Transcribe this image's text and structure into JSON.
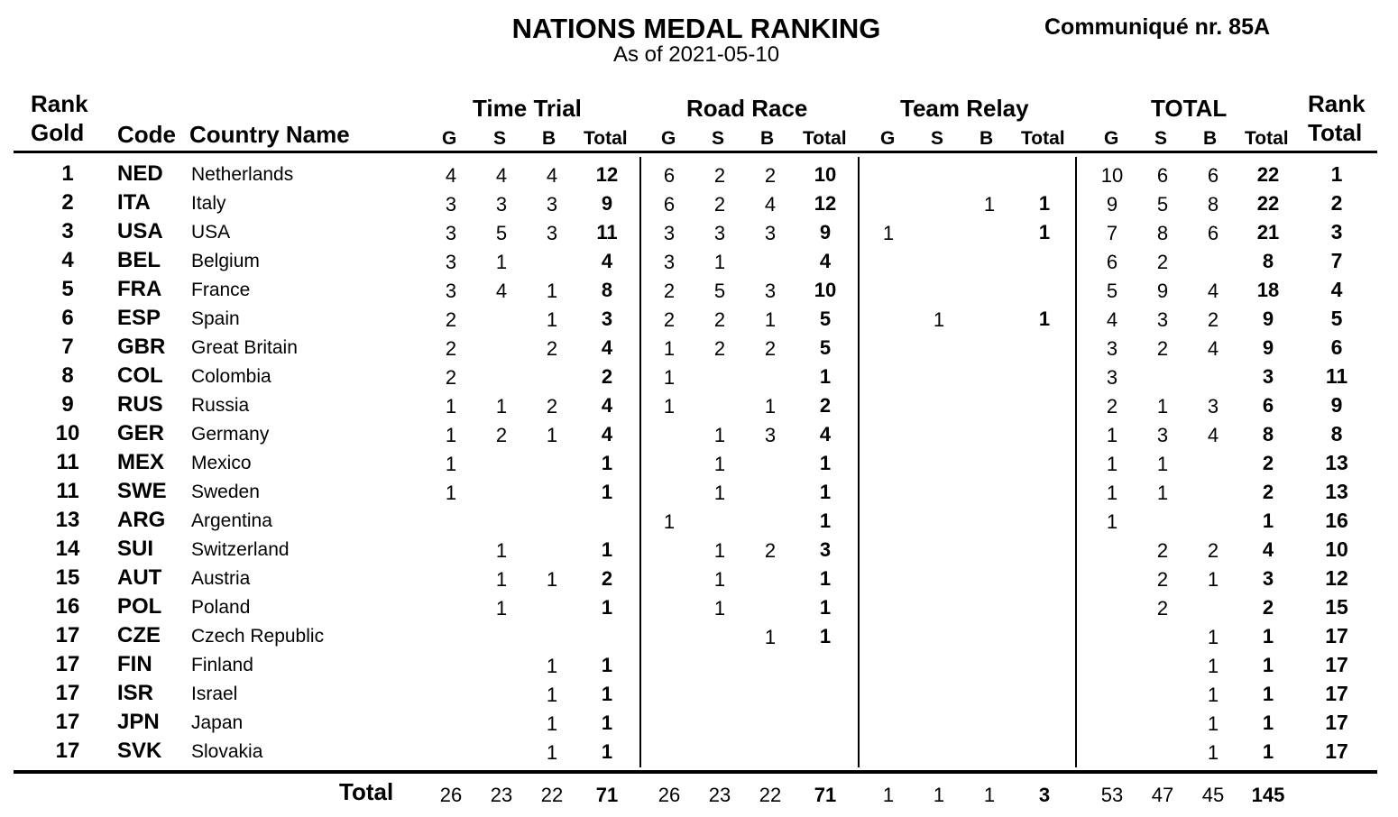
{
  "header": {
    "title": "NATIONS MEDAL RANKING",
    "subtitle": "As of 2021-05-10",
    "communique": "Communiqué nr.  85A"
  },
  "columns": {
    "rank_gold_top": "Rank",
    "rank_gold_bottom": "Gold",
    "code": "Code",
    "country": "Country Name",
    "rank_total_top": "Rank",
    "rank_total_bottom": "Total",
    "groups": [
      "Time Trial",
      "Road Race",
      "Team Relay",
      "TOTAL"
    ],
    "g": "G",
    "s": "S",
    "b": "B",
    "total": "Total"
  },
  "rows": [
    {
      "rank": "1",
      "code": "NED",
      "name": "Netherlands",
      "tt": [
        "4",
        "4",
        "4",
        "12"
      ],
      "rr": [
        "6",
        "2",
        "2",
        "10"
      ],
      "rl": [
        "",
        "",
        "",
        ""
      ],
      "t": [
        "10",
        "6",
        "6",
        "22"
      ],
      "rank_total": "1"
    },
    {
      "rank": "2",
      "code": "ITA",
      "name": "Italy",
      "tt": [
        "3",
        "3",
        "3",
        "9"
      ],
      "rr": [
        "6",
        "2",
        "4",
        "12"
      ],
      "rl": [
        "",
        "",
        "1",
        "1"
      ],
      "t": [
        "9",
        "5",
        "8",
        "22"
      ],
      "rank_total": "2"
    },
    {
      "rank": "3",
      "code": "USA",
      "name": "USA",
      "tt": [
        "3",
        "5",
        "3",
        "11"
      ],
      "rr": [
        "3",
        "3",
        "3",
        "9"
      ],
      "rl": [
        "1",
        "",
        "",
        "1"
      ],
      "t": [
        "7",
        "8",
        "6",
        "21"
      ],
      "rank_total": "3"
    },
    {
      "rank": "4",
      "code": "BEL",
      "name": "Belgium",
      "tt": [
        "3",
        "1",
        "",
        "4"
      ],
      "rr": [
        "3",
        "1",
        "",
        "4"
      ],
      "rl": [
        "",
        "",
        "",
        ""
      ],
      "t": [
        "6",
        "2",
        "",
        "8"
      ],
      "rank_total": "7"
    },
    {
      "rank": "5",
      "code": "FRA",
      "name": "France",
      "tt": [
        "3",
        "4",
        "1",
        "8"
      ],
      "rr": [
        "2",
        "5",
        "3",
        "10"
      ],
      "rl": [
        "",
        "",
        "",
        ""
      ],
      "t": [
        "5",
        "9",
        "4",
        "18"
      ],
      "rank_total": "4"
    },
    {
      "rank": "6",
      "code": "ESP",
      "name": "Spain",
      "tt": [
        "2",
        "",
        "1",
        "3"
      ],
      "rr": [
        "2",
        "2",
        "1",
        "5"
      ],
      "rl": [
        "",
        "1",
        "",
        "1"
      ],
      "t": [
        "4",
        "3",
        "2",
        "9"
      ],
      "rank_total": "5"
    },
    {
      "rank": "7",
      "code": "GBR",
      "name": "Great Britain",
      "tt": [
        "2",
        "",
        "2",
        "4"
      ],
      "rr": [
        "1",
        "2",
        "2",
        "5"
      ],
      "rl": [
        "",
        "",
        "",
        ""
      ],
      "t": [
        "3",
        "2",
        "4",
        "9"
      ],
      "rank_total": "6"
    },
    {
      "rank": "8",
      "code": "COL",
      "name": "Colombia",
      "tt": [
        "2",
        "",
        "",
        "2"
      ],
      "rr": [
        "1",
        "",
        "",
        "1"
      ],
      "rl": [
        "",
        "",
        "",
        ""
      ],
      "t": [
        "3",
        "",
        "",
        "3"
      ],
      "rank_total": "11"
    },
    {
      "rank": "9",
      "code": "RUS",
      "name": "Russia",
      "tt": [
        "1",
        "1",
        "2",
        "4"
      ],
      "rr": [
        "1",
        "",
        "1",
        "2"
      ],
      "rl": [
        "",
        "",
        "",
        ""
      ],
      "t": [
        "2",
        "1",
        "3",
        "6"
      ],
      "rank_total": "9"
    },
    {
      "rank": "10",
      "code": "GER",
      "name": "Germany",
      "tt": [
        "1",
        "2",
        "1",
        "4"
      ],
      "rr": [
        "",
        "1",
        "3",
        "4"
      ],
      "rl": [
        "",
        "",
        "",
        ""
      ],
      "t": [
        "1",
        "3",
        "4",
        "8"
      ],
      "rank_total": "8"
    },
    {
      "rank": "11",
      "code": "MEX",
      "name": "Mexico",
      "tt": [
        "1",
        "",
        "",
        "1"
      ],
      "rr": [
        "",
        "1",
        "",
        "1"
      ],
      "rl": [
        "",
        "",
        "",
        ""
      ],
      "t": [
        "1",
        "1",
        "",
        "2"
      ],
      "rank_total": "13"
    },
    {
      "rank": "11",
      "code": "SWE",
      "name": "Sweden",
      "tt": [
        "1",
        "",
        "",
        "1"
      ],
      "rr": [
        "",
        "1",
        "",
        "1"
      ],
      "rl": [
        "",
        "",
        "",
        ""
      ],
      "t": [
        "1",
        "1",
        "",
        "2"
      ],
      "rank_total": "13"
    },
    {
      "rank": "13",
      "code": "ARG",
      "name": "Argentina",
      "tt": [
        "",
        "",
        "",
        ""
      ],
      "rr": [
        "1",
        "",
        "",
        "1"
      ],
      "rl": [
        "",
        "",
        "",
        ""
      ],
      "t": [
        "1",
        "",
        "",
        "1"
      ],
      "rank_total": "16"
    },
    {
      "rank": "14",
      "code": "SUI",
      "name": "Switzerland",
      "tt": [
        "",
        "1",
        "",
        "1"
      ],
      "rr": [
        "",
        "1",
        "2",
        "3"
      ],
      "rl": [
        "",
        "",
        "",
        ""
      ],
      "t": [
        "",
        "2",
        "2",
        "4"
      ],
      "rank_total": "10"
    },
    {
      "rank": "15",
      "code": "AUT",
      "name": "Austria",
      "tt": [
        "",
        "1",
        "1",
        "2"
      ],
      "rr": [
        "",
        "1",
        "",
        "1"
      ],
      "rl": [
        "",
        "",
        "",
        ""
      ],
      "t": [
        "",
        "2",
        "1",
        "3"
      ],
      "rank_total": "12"
    },
    {
      "rank": "16",
      "code": "POL",
      "name": "Poland",
      "tt": [
        "",
        "1",
        "",
        "1"
      ],
      "rr": [
        "",
        "1",
        "",
        "1"
      ],
      "rl": [
        "",
        "",
        "",
        ""
      ],
      "t": [
        "",
        "2",
        "",
        "2"
      ],
      "rank_total": "15"
    },
    {
      "rank": "17",
      "code": "CZE",
      "name": "Czech Republic",
      "tt": [
        "",
        "",
        "",
        ""
      ],
      "rr": [
        "",
        "",
        "1",
        "1"
      ],
      "rl": [
        "",
        "",
        "",
        ""
      ],
      "t": [
        "",
        "",
        "1",
        "1"
      ],
      "rank_total": "17"
    },
    {
      "rank": "17",
      "code": "FIN",
      "name": "Finland",
      "tt": [
        "",
        "",
        "1",
        "1"
      ],
      "rr": [
        "",
        "",
        "",
        ""
      ],
      "rl": [
        "",
        "",
        "",
        ""
      ],
      "t": [
        "",
        "",
        "1",
        "1"
      ],
      "rank_total": "17"
    },
    {
      "rank": "17",
      "code": "ISR",
      "name": "Israel",
      "tt": [
        "",
        "",
        "1",
        "1"
      ],
      "rr": [
        "",
        "",
        "",
        ""
      ],
      "rl": [
        "",
        "",
        "",
        ""
      ],
      "t": [
        "",
        "",
        "1",
        "1"
      ],
      "rank_total": "17"
    },
    {
      "rank": "17",
      "code": "JPN",
      "name": "Japan",
      "tt": [
        "",
        "",
        "1",
        "1"
      ],
      "rr": [
        "",
        "",
        "",
        ""
      ],
      "rl": [
        "",
        "",
        "",
        ""
      ],
      "t": [
        "",
        "",
        "1",
        "1"
      ],
      "rank_total": "17"
    },
    {
      "rank": "17",
      "code": "SVK",
      "name": "Slovakia",
      "tt": [
        "",
        "",
        "1",
        "1"
      ],
      "rr": [
        "",
        "",
        "",
        ""
      ],
      "rl": [
        "",
        "",
        "",
        ""
      ],
      "t": [
        "",
        "",
        "1",
        "1"
      ],
      "rank_total": "17"
    }
  ],
  "totals": {
    "label": "Total",
    "tt": [
      "26",
      "23",
      "22",
      "71"
    ],
    "rr": [
      "26",
      "23",
      "22",
      "71"
    ],
    "rl": [
      "1",
      "1",
      "1",
      "3"
    ],
    "t": [
      "53",
      "47",
      "45",
      "145"
    ]
  }
}
